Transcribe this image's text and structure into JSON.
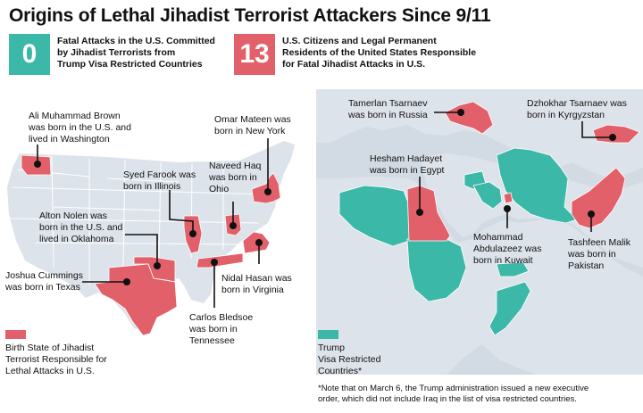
{
  "title": "Origins of Lethal Jihadist Terrorist Attackers Since 9/11",
  "colors": {
    "teal": "#3bb8a7",
    "red": "#e2606a",
    "land": "#dde3ea",
    "sea": "#d2dae3",
    "border": "#ffffff"
  },
  "stats": [
    {
      "value": "0",
      "lines": [
        "Fatal Attacks in the U.S. Committed",
        "by Jihadist Terrorists from",
        "Trump Visa Restricted Countries"
      ]
    },
    {
      "value": "13",
      "lines": [
        "U.S. Citizens and Legal Permanent",
        "Residents of the United States Responsible",
        "for Fatal Jihadist Attacks in U.S."
      ]
    }
  ],
  "us_labels": {
    "brown": [
      "Ali Muhammad Brown",
      "was born in the U.S. and",
      "lived in Washington"
    ],
    "mateen": [
      "Omar Mateen was",
      "born in New York"
    ],
    "farook": [
      "Syed Farook was",
      "born in Illinois"
    ],
    "haq": [
      "Naveed Haq",
      "was born in",
      "Ohio"
    ],
    "nolen": [
      "Alton Nolen was",
      "born in the U.S. and",
      "lived in Oklahoma"
    ],
    "cummings": [
      "Joshua Cummings",
      "was born in Texas"
    ],
    "hasan": [
      "Nidal Hasan was",
      "born in Virginia"
    ],
    "bledsoe": [
      "Carlos Bledsoe",
      "was born in",
      "Tennessee"
    ]
  },
  "world_labels": {
    "tamerlan": [
      "Tamerlan Tsarnaev",
      "was born in Russia"
    ],
    "dzhokhar": [
      "Dzhokhar Tsarnaev was",
      "born in Kyrgyzstan"
    ],
    "hadayet": [
      "Hesham Hadayet",
      "was born in Egypt"
    ],
    "abdulazeez": [
      "Mohammad",
      "Abdulazeez was",
      "born in Kuwait"
    ],
    "malik": [
      "Tashfeen Malik",
      "was born in",
      "Pakistan"
    ]
  },
  "legend": {
    "red": [
      "Birth State of Jihadist",
      "Terrorist Responsible for",
      "Lethal Attacks in U.S."
    ],
    "teal": [
      "Trump",
      "Visa Restricted",
      "Countries*"
    ]
  },
  "note": [
    "*Note that on March 6, the Trump administration issued a new executive",
    "order, which did not include Iraq in the list of visa restricted countries."
  ]
}
